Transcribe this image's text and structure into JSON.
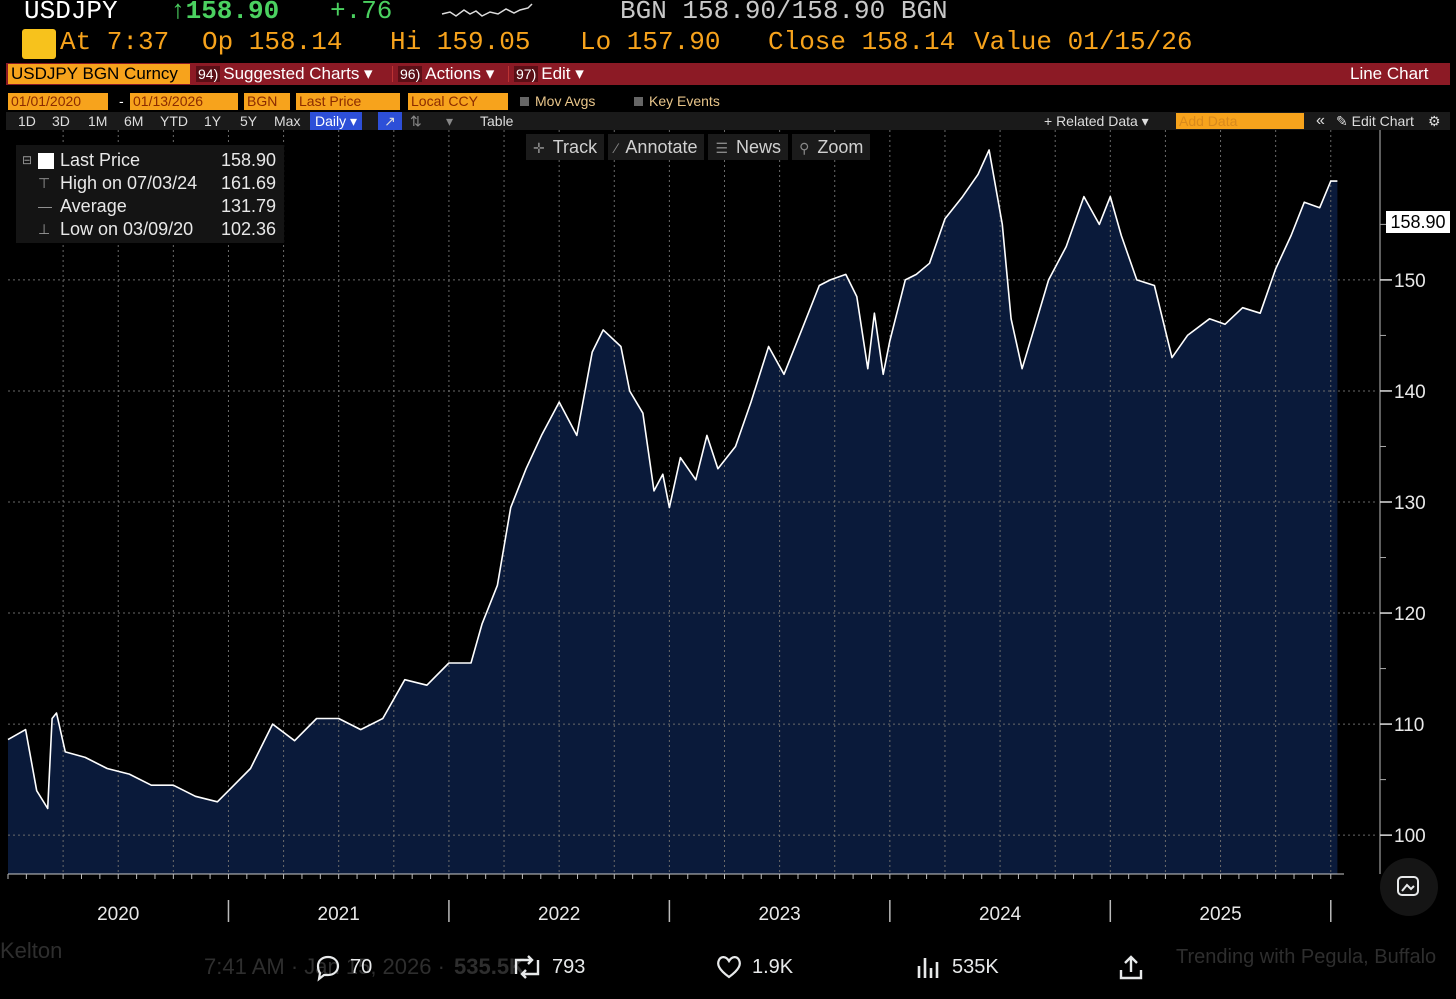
{
  "header": {
    "ticker": "USDJPY",
    "price": "↑158.90",
    "change": "+.76",
    "source_line": "BGN 158.90/158.90 BGN",
    "time": "At 7:37",
    "open": "Op 158.14",
    "high": "Hi 159.05",
    "low": "Lo 157.90",
    "close": "Close 158.14",
    "value": "Value 01/15/26"
  },
  "command_bar": {
    "security": "USDJPY BGN Curncy",
    "suggested": {
      "num": "94)",
      "label": "Suggested Charts ▾"
    },
    "actions": {
      "num": "96)",
      "label": "Actions ▾"
    },
    "edit": {
      "num": "97)",
      "label": "Edit ▾"
    },
    "title": "Line Chart"
  },
  "params": {
    "start_date": "01/01/2020",
    "dash": "-",
    "end_date": "01/13/2026",
    "source": "BGN",
    "field": "Last Price",
    "currency": "Local CCY",
    "mov_avgs": "Mov Avgs",
    "key_events": "Key Events"
  },
  "periods": {
    "items": [
      "1D",
      "3D",
      "1M",
      "6M",
      "YTD",
      "1Y",
      "5Y",
      "Max"
    ],
    "frequency": "Daily ▾",
    "table": "Table",
    "related": "+ Related Data ▾",
    "add_data": "Add Data",
    "collapse": "«",
    "edit_chart": "Edit Chart"
  },
  "toolbar": {
    "track": "Track",
    "annotate": "Annotate",
    "news": "News",
    "zoom": "Zoom"
  },
  "legend": {
    "last": {
      "label": "Last Price",
      "value": "158.90"
    },
    "high": {
      "label": "High on 07/03/24",
      "value": "161.69"
    },
    "avg": {
      "label": "Average",
      "value": "131.79"
    },
    "low": {
      "label": "Low on 03/09/20",
      "value": "102.36"
    }
  },
  "last_tag": "158.90",
  "chart_data": {
    "type": "area",
    "x_unit": "year",
    "x": [
      2020.0,
      2020.08,
      2020.13,
      2020.18,
      2020.2,
      2020.22,
      2020.26,
      2020.35,
      2020.45,
      2020.55,
      2020.65,
      2020.75,
      2020.85,
      2020.95,
      2021.0,
      2021.1,
      2021.2,
      2021.3,
      2021.4,
      2021.5,
      2021.6,
      2021.7,
      2021.8,
      2021.9,
      2022.0,
      2022.1,
      2022.15,
      2022.22,
      2022.28,
      2022.35,
      2022.42,
      2022.5,
      2022.58,
      2022.65,
      2022.7,
      2022.78,
      2022.82,
      2022.88,
      2022.93,
      2022.97,
      2023.0,
      2023.05,
      2023.12,
      2023.17,
      2023.22,
      2023.3,
      2023.37,
      2023.45,
      2023.52,
      2023.6,
      2023.68,
      2023.73,
      2023.8,
      2023.85,
      2023.9,
      2023.93,
      2023.97,
      2024.0,
      2024.07,
      2024.12,
      2024.18,
      2024.25,
      2024.33,
      2024.4,
      2024.45,
      2024.51,
      2024.55,
      2024.6,
      2024.66,
      2024.72,
      2024.8,
      2024.88,
      2024.95,
      2025.0,
      2025.05,
      2025.12,
      2025.2,
      2025.28,
      2025.35,
      2025.45,
      2025.52,
      2025.6,
      2025.68,
      2025.75,
      2025.82,
      2025.88,
      2025.95,
      2026.0,
      2026.03
    ],
    "values": [
      108.6,
      109.5,
      104.0,
      102.4,
      110.5,
      111.0,
      107.5,
      107.0,
      106.0,
      105.5,
      104.5,
      104.5,
      103.5,
      103.0,
      104.0,
      106.0,
      110.0,
      108.5,
      110.5,
      110.5,
      109.5,
      110.5,
      114.0,
      113.5,
      115.5,
      115.5,
      119.0,
      122.5,
      129.5,
      133.0,
      136.0,
      139.0,
      136.0,
      143.5,
      145.5,
      144.0,
      140.0,
      138.0,
      131.0,
      132.5,
      129.5,
      134.0,
      132.0,
      136.0,
      133.0,
      135.0,
      139.0,
      144.0,
      141.5,
      145.5,
      149.5,
      150.0,
      150.5,
      148.5,
      142.0,
      147.0,
      141.5,
      144.5,
      150.0,
      150.5,
      151.5,
      155.5,
      157.5,
      159.5,
      161.7,
      155.0,
      146.5,
      142.0,
      146.0,
      150.0,
      153.0,
      157.5,
      155.0,
      157.5,
      154.0,
      150.0,
      149.5,
      143.0,
      145.0,
      146.5,
      146.0,
      147.5,
      147.0,
      151.0,
      154.0,
      157.0,
      156.5,
      158.9,
      158.9
    ],
    "xlabel": "",
    "ylabel": "",
    "x_ticks": [
      "2020",
      "2021",
      "2022",
      "2023",
      "2024",
      "2025"
    ],
    "y_ticks": [
      100,
      110,
      120,
      130,
      140,
      150
    ],
    "xlim": [
      2020.0,
      2026.06
    ],
    "ylim": [
      96.5,
      163.5
    ],
    "grid": true,
    "legend_position": "top-left",
    "line_color": "#ffffff",
    "fill_color": "#0a1a3a"
  },
  "footer": {
    "time_label": "7:41 AM · Jan 15, 2026 ·",
    "views_partial": "535.5K",
    "name_partial": "Kelton",
    "trending": "Trending with Pegula, Buffalo",
    "replies": "70",
    "reposts": "793",
    "likes": "1.9K",
    "views": "535K"
  }
}
